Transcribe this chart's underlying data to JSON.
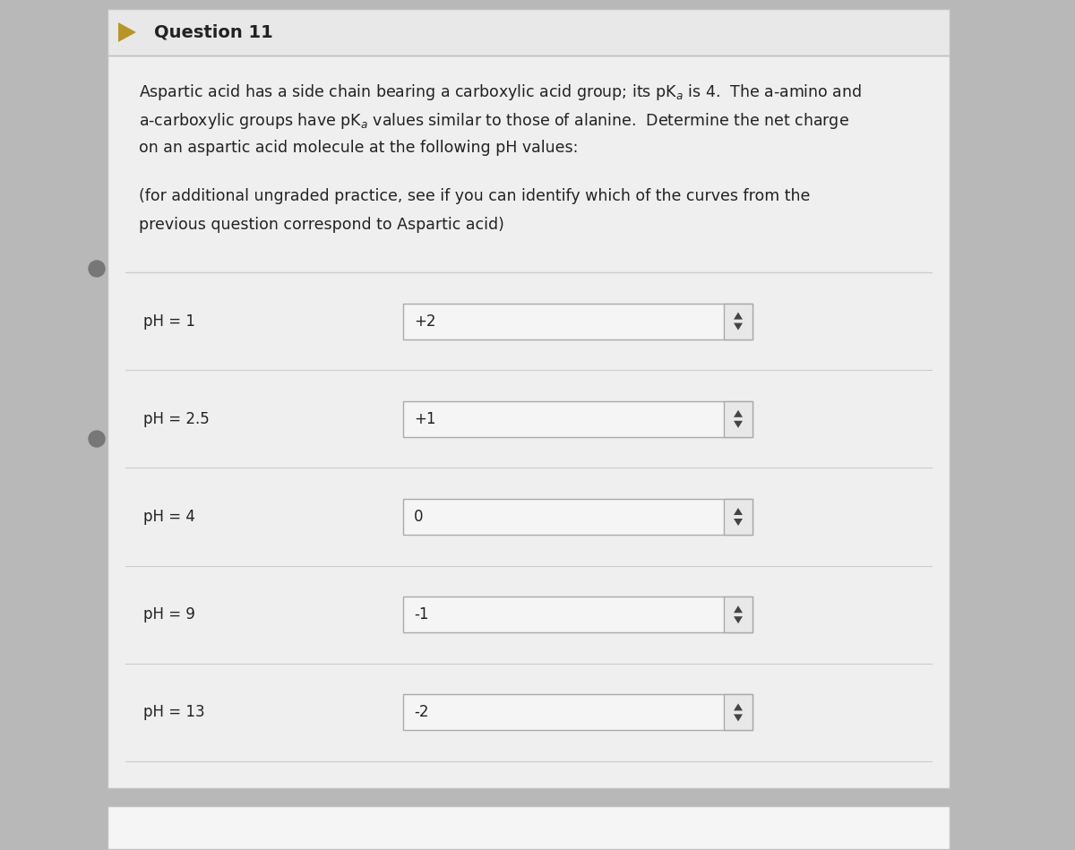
{
  "title": "Question 11",
  "p1_lines": [
    "Aspartic acid has a side chain bearing a carboxylic acid group; its pK$_a$ is 4.  The a-amino and",
    "a-carboxylic groups have pK$_a$ values similar to those of alanine.  Determine the net charge",
    "on an aspartic acid molecule at the following pH values:"
  ],
  "p2_lines": [
    "(for additional ungraded practice, see if you can identify which of the curves from the",
    "previous question correspond to Aspartic acid)"
  ],
  "rows": [
    {
      "label": "pH = 1",
      "value": "+2"
    },
    {
      "label": "pH = 2.5",
      "value": "+1"
    },
    {
      "label": "pH = 4",
      "value": "0"
    },
    {
      "label": "pH = 9",
      "value": "-1"
    },
    {
      "label": "pH = 13",
      "value": "-2"
    }
  ],
  "bg_outer": "#b8b8b8",
  "bg_card": "#efefef",
  "bg_input": "#e0e0e0",
  "bg_title_bar": "#e8e8e8",
  "border_color": "#c0c0c0",
  "text_color": "#222222",
  "row_line_color": "#cccccc",
  "bullet_color": "#b8952a",
  "title_fontsize": 14,
  "body_fontsize": 12.5,
  "label_fontsize": 12,
  "value_fontsize": 12
}
